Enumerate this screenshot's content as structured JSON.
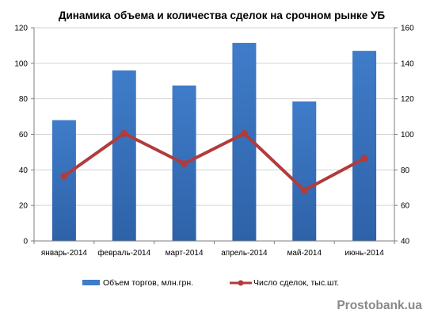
{
  "colors": {
    "bar": "#3F7CC9",
    "bar_dark": "#2E62A8",
    "line": "#B23B3B",
    "grid": "#D3D3D3",
    "axis": "#7F7F7F",
    "watermark": "#8A8A8A"
  },
  "watermark": "Prostobank.ua",
  "chart_data": {
    "type": "bar",
    "title": "Динамика объема и количества сделок на срочном рынке УБ",
    "categories": [
      "январь-2014",
      "февраль-2014",
      "март-2014",
      "апрель-2014",
      "май-2014",
      "июнь-2014"
    ],
    "series": [
      {
        "name": "Объем торгов, млн.грн.",
        "type": "bar",
        "axis": "left",
        "values": [
          68,
          96,
          87.5,
          111.5,
          78.5,
          107
        ]
      },
      {
        "name": "Число сделок, тыс.шт.",
        "type": "line",
        "axis": "right",
        "values": [
          76.5,
          100.5,
          83.5,
          100.5,
          68.5,
          86.5
        ]
      }
    ],
    "y_left": {
      "min": 0,
      "max": 120,
      "ticks": [
        0,
        20,
        40,
        60,
        80,
        100,
        120
      ]
    },
    "y_right": {
      "min": 40,
      "max": 160,
      "ticks": [
        40,
        60,
        80,
        100,
        120,
        140,
        160
      ]
    },
    "grid": true,
    "legend": "bottom"
  }
}
